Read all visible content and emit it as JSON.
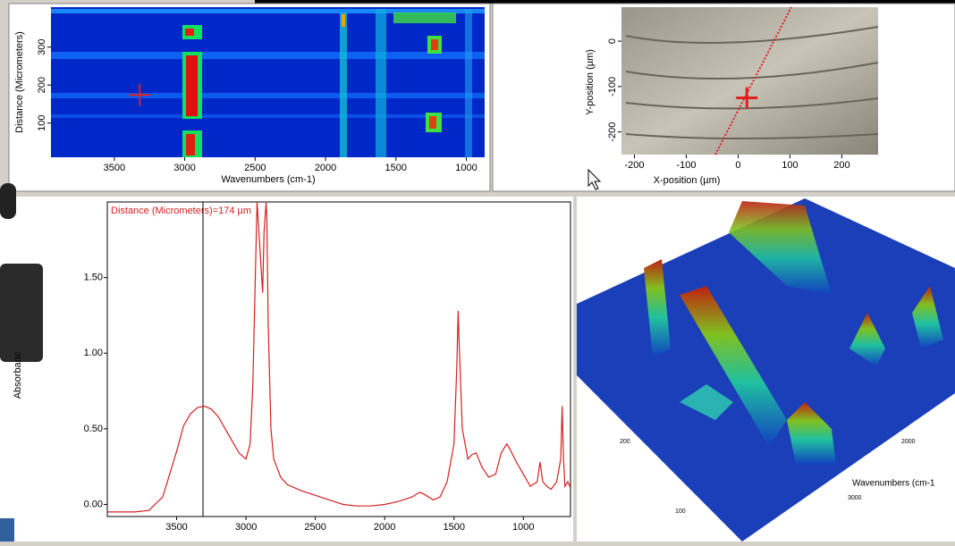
{
  "heatmap": {
    "ylabel": "Distance (Micrometers)",
    "xlabel": "Wavenumbers (cm-1)",
    "xlim": [
      3950,
      870
    ],
    "ylim": [
      10,
      405
    ],
    "xticks": [
      3500,
      3000,
      2500,
      2000,
      1500,
      1000
    ],
    "yticks": [
      100,
      200,
      300
    ],
    "cursor": {
      "x": 3320,
      "y": 174
    }
  },
  "image": {
    "xlabel": "X-position (µm)",
    "ylabel": "Y-position (µm)",
    "xlim": [
      -225,
      270
    ],
    "ylim": [
      -250,
      75
    ],
    "xticks": [
      -200,
      -100,
      0,
      100,
      200
    ],
    "yticks": [
      0,
      -100,
      -200
    ],
    "cursor": {
      "x": 17,
      "y": -125
    }
  },
  "spectrum": {
    "type": "line",
    "ylabel": "Absorbanc",
    "annotation": "Distance (Micrometers)=174 µm",
    "color": "#d42020",
    "xlim": [
      4000,
      660
    ],
    "ylim": [
      -0.08,
      2.0
    ],
    "xticks": [
      3500,
      3000,
      2500,
      2000,
      1500,
      1000
    ],
    "yticks": [
      {
        "value": 0,
        "label": "0.00"
      },
      {
        "value": 0.5,
        "label": "0.50"
      },
      {
        "value": 1,
        "label": "1.00"
      },
      {
        "value": 1.5,
        "label": "1.50"
      }
    ],
    "cursor_x": 3310,
    "x": [
      4000,
      3800,
      3700,
      3600,
      3500,
      3450,
      3400,
      3350,
      3300,
      3250,
      3200,
      3150,
      3100,
      3050,
      3000,
      2970,
      2950,
      2930,
      2920,
      2900,
      2880,
      2870,
      2855,
      2850,
      2840,
      2820,
      2800,
      2750,
      2700,
      2600,
      2500,
      2400,
      2300,
      2200,
      2100,
      2000,
      1900,
      1800,
      1750,
      1720,
      1650,
      1600,
      1550,
      1500,
      1480,
      1470,
      1460,
      1440,
      1400,
      1370,
      1340,
      1300,
      1250,
      1200,
      1160,
      1120,
      1100,
      1050,
      1000,
      950,
      900,
      880,
      860,
      830,
      800,
      760,
      730,
      720,
      710,
      700,
      680,
      660
    ],
    "values": [
      -0.05,
      -0.05,
      -0.04,
      0.05,
      0.35,
      0.52,
      0.6,
      0.64,
      0.65,
      0.63,
      0.58,
      0.5,
      0.42,
      0.34,
      0.3,
      0.4,
      0.8,
      1.6,
      2.0,
      1.7,
      1.4,
      1.8,
      2.0,
      1.9,
      1.2,
      0.5,
      0.3,
      0.18,
      0.13,
      0.09,
      0.06,
      0.03,
      0.0,
      -0.01,
      -0.01,
      0.0,
      0.02,
      0.05,
      0.08,
      0.07,
      0.03,
      0.05,
      0.15,
      0.4,
      0.9,
      1.28,
      1.0,
      0.5,
      0.3,
      0.33,
      0.34,
      0.25,
      0.18,
      0.2,
      0.34,
      0.4,
      0.37,
      0.28,
      0.2,
      0.12,
      0.15,
      0.28,
      0.15,
      0.12,
      0.1,
      0.15,
      0.3,
      0.65,
      0.3,
      0.12,
      0.15,
      0.11
    ]
  },
  "surface": {
    "axis_label": "Wavenumbers (cm-1",
    "labels": [
      "200",
      "2000",
      "3000",
      "100"
    ]
  }
}
